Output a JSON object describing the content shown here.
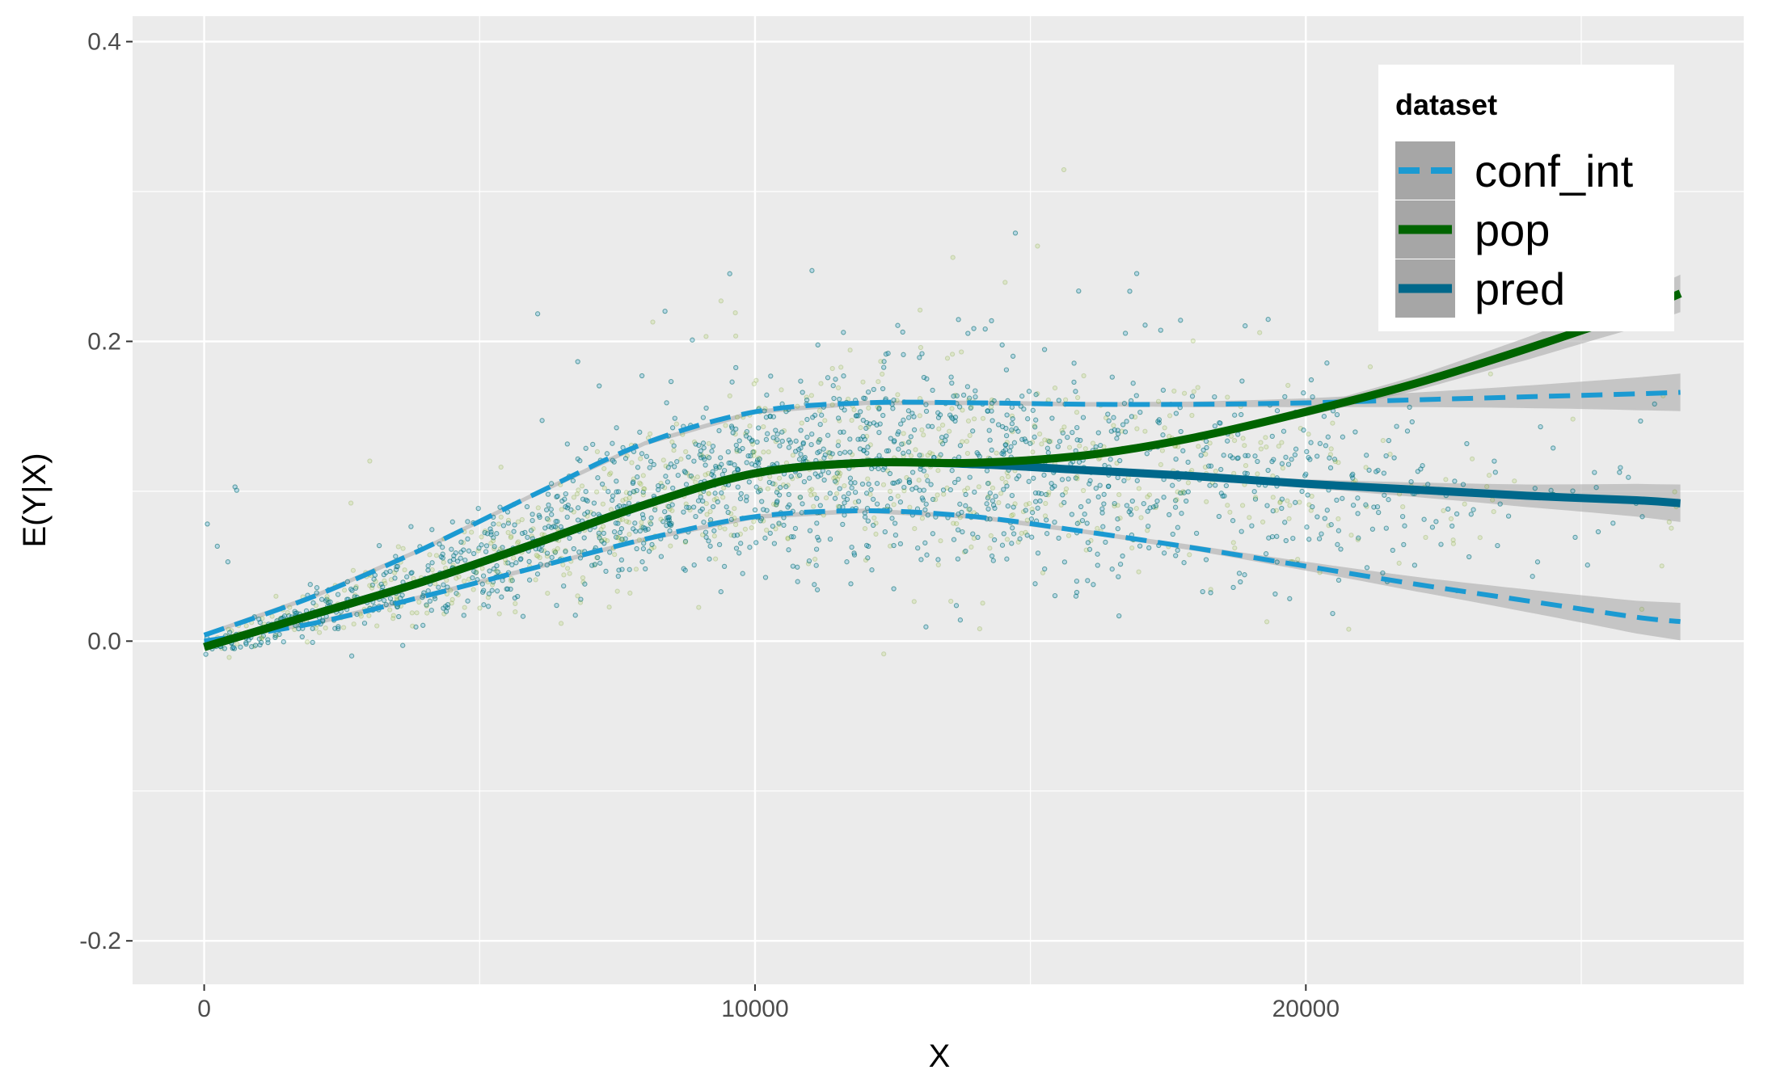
{
  "chart_data": {
    "type": "scatter",
    "title": "",
    "xlabel": "X",
    "ylabel": "E(Y|X)",
    "xlim": [
      -1300,
      27950
    ],
    "ylim": [
      -0.229,
      0.417
    ],
    "x_ticks": [
      0,
      10000,
      20000
    ],
    "x_tick_labels": [
      "0",
      "10000",
      "20000"
    ],
    "y_ticks": [
      -0.2,
      0.0,
      0.2,
      0.4
    ],
    "y_tick_labels": [
      "-0.2",
      "0.0",
      "0.2",
      "0.4"
    ],
    "grid": true,
    "background": "#EBEBEB",
    "legend": {
      "title": "dataset",
      "position": "top-right",
      "entries": [
        "conf_int",
        "pop",
        "pred"
      ]
    },
    "colors": {
      "conf_int": "#1B9AD2",
      "pop": "#006400",
      "pred": "#00688B",
      "ribbon": "#A6A6A6"
    },
    "series": [
      {
        "name": "pop",
        "type": "smooth",
        "x": [
          0,
          2000,
          4000,
          6000,
          8000,
          10000,
          12000,
          14000,
          16000,
          18000,
          20000,
          22000,
          24000,
          26000,
          26800
        ],
        "values": [
          -0.004,
          0.018,
          0.04,
          0.065,
          0.091,
          0.112,
          0.119,
          0.119,
          0.124,
          0.136,
          0.153,
          0.172,
          0.195,
          0.22,
          0.232
        ]
      },
      {
        "name": "pred",
        "type": "smooth",
        "x": [
          0,
          2000,
          4000,
          6000,
          8000,
          10000,
          12000,
          14000,
          16000,
          18000,
          20000,
          22000,
          24000,
          26000,
          26800
        ],
        "values": [
          -0.004,
          0.018,
          0.04,
          0.065,
          0.091,
          0.112,
          0.119,
          0.118,
          0.114,
          0.11,
          0.105,
          0.101,
          0.097,
          0.094,
          0.092
        ]
      },
      {
        "name": "conf_int",
        "type": "dashed",
        "part": "upper",
        "x": [
          0,
          2000,
          4000,
          6000,
          8000,
          10000,
          12000,
          14000,
          16000,
          18000,
          20000,
          22000,
          24000,
          26000,
          26800
        ],
        "values": [
          0.004,
          0.03,
          0.062,
          0.098,
          0.132,
          0.153,
          0.159,
          0.159,
          0.158,
          0.158,
          0.159,
          0.161,
          0.163,
          0.165,
          0.166
        ]
      },
      {
        "name": "conf_int",
        "type": "dashed",
        "part": "lower",
        "x": [
          0,
          2000,
          4000,
          6000,
          8000,
          10000,
          12000,
          14000,
          16000,
          18000,
          20000,
          22000,
          24000,
          26000,
          26800
        ],
        "values": [
          0.0,
          0.012,
          0.03,
          0.049,
          0.068,
          0.083,
          0.087,
          0.083,
          0.073,
          0.062,
          0.05,
          0.038,
          0.027,
          0.016,
          0.013
        ]
      }
    ]
  }
}
